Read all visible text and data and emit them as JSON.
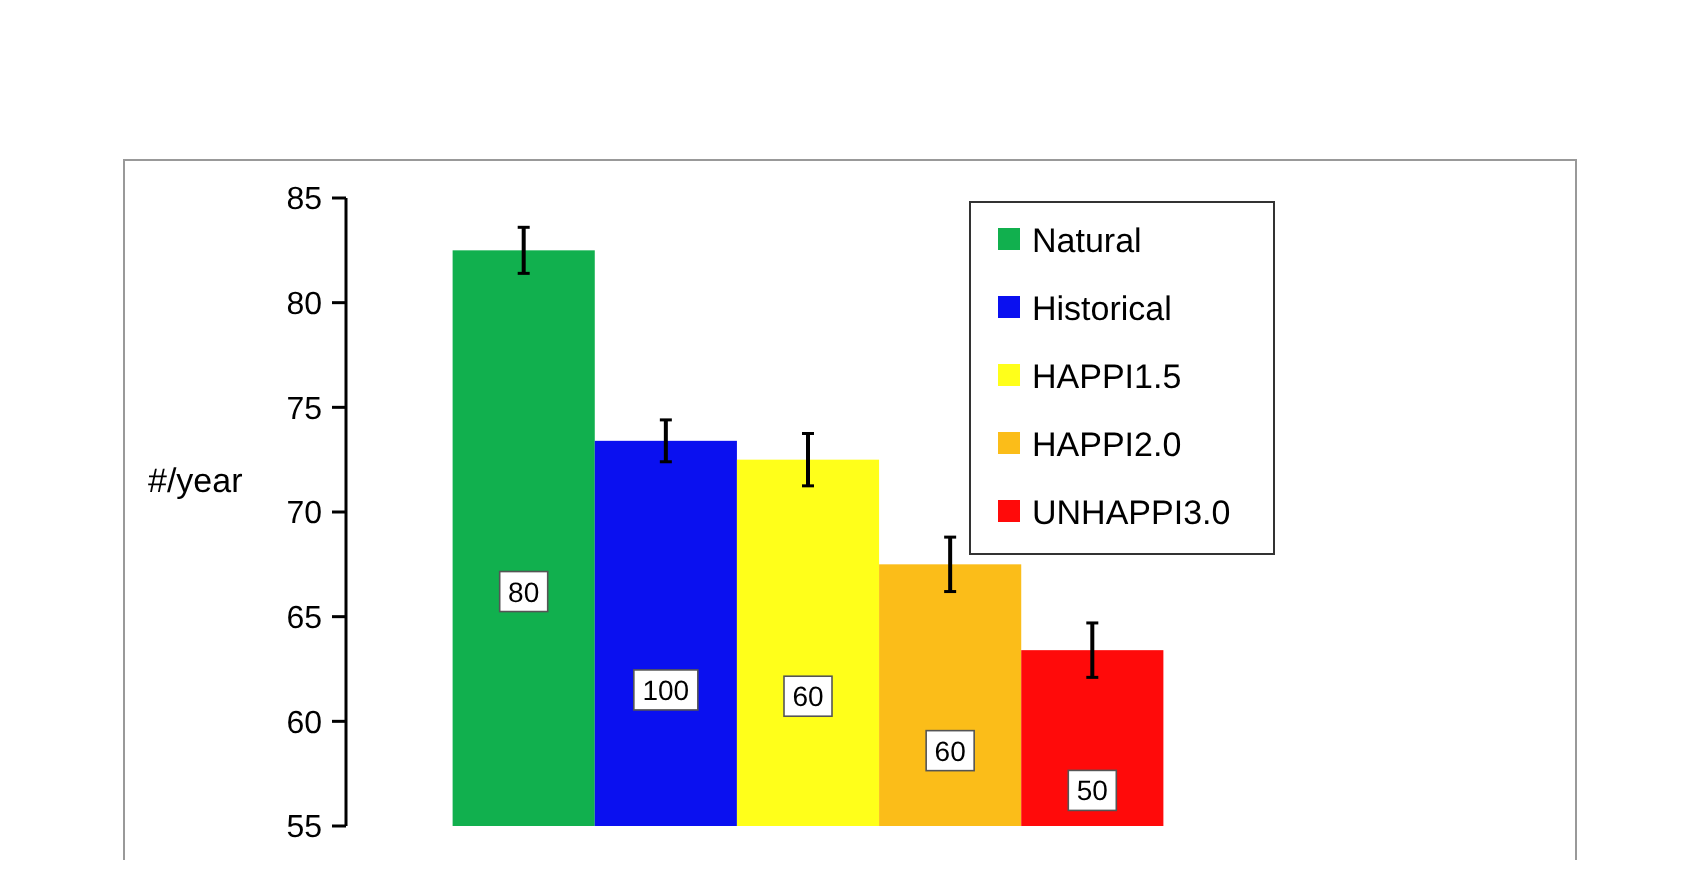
{
  "chart_data": {
    "type": "bar",
    "ylabel": "#/year",
    "categories": [
      null
    ],
    "ylim": [
      55,
      85
    ],
    "yticks": [
      55,
      60,
      65,
      70,
      75,
      80,
      85
    ],
    "grid": false,
    "legend": "top right",
    "series": [
      {
        "name": "Natural",
        "color": "#11b04e",
        "values": [
          82.5
        ],
        "errors": [
          1.1
        ]
      },
      {
        "name": "Historical",
        "color": "#0a10f0",
        "values": [
          73.4
        ],
        "errors": [
          1.0
        ]
      },
      {
        "name": "HAPPI1.5",
        "color": "#ffff1a",
        "values": [
          72.5
        ],
        "errors": [
          1.25
        ]
      },
      {
        "name": "HAPPI2.0",
        "color": "#fbbd19",
        "values": [
          67.5
        ],
        "errors": [
          1.3
        ]
      },
      {
        "name": "UNHAPPI3.0",
        "color": "#ff0a0a",
        "values": [
          63.4
        ],
        "errors": [
          1.3
        ]
      }
    ],
    "annotations": [
      {
        "text": "80",
        "y": 66.2
      },
      {
        "text": "100",
        "y": 61.5
      },
      {
        "text": "60",
        "y": 61.2
      },
      {
        "text": "60",
        "y": 58.6
      },
      {
        "text": "50",
        "y": 56.7
      }
    ]
  }
}
